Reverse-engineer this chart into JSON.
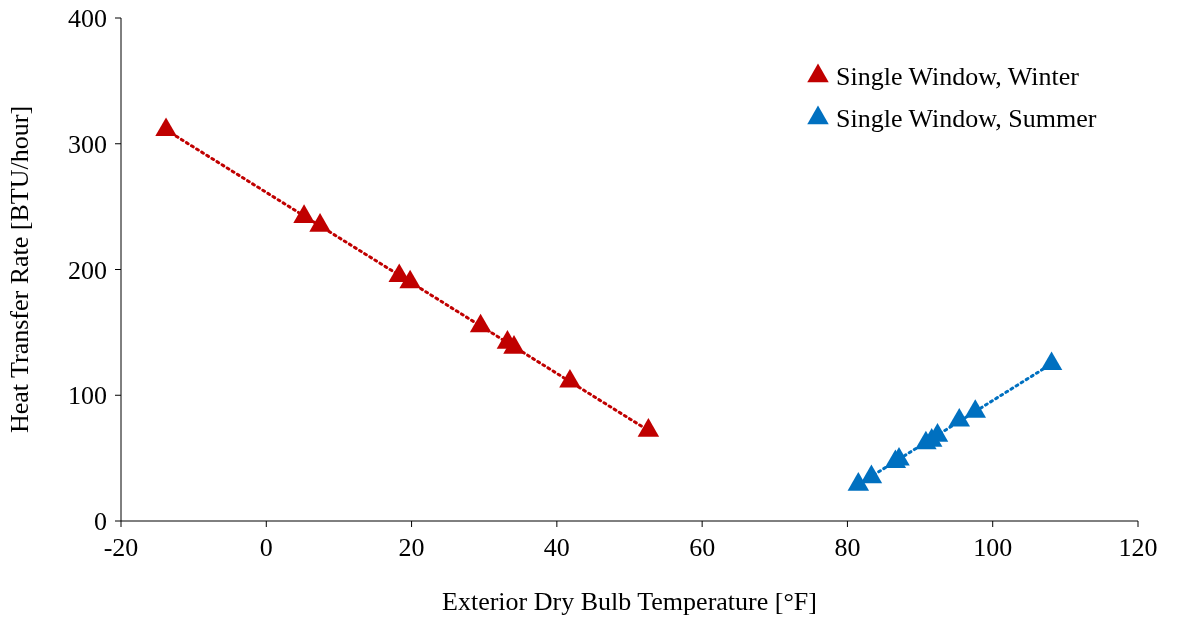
{
  "chart_data": {
    "type": "scatter",
    "xlabel": "Exterior Dry Bulb Temperature [°F]",
    "ylabel": "Heat Transfer Rate [BTU/hour]",
    "xlim": [
      -20,
      120
    ],
    "xticks": [
      -20,
      0,
      20,
      40,
      60,
      80,
      100,
      120
    ],
    "ylim": [
      0,
      400
    ],
    "yticks": [
      0,
      100,
      200,
      300,
      400
    ],
    "grid": false,
    "legend": "top right",
    "marker": "triangle",
    "series": [
      {
        "type": "line",
        "color": "#c00000",
        "line_style": "dotted",
        "marker": "none",
        "x": [
          -13.8,
          52.6
        ],
        "values": [
          311,
          72
        ]
      },
      {
        "type": "line",
        "color": "#0070c0",
        "line_style": "dotted",
        "marker": "none",
        "x": [
          81.5,
          108.1
        ],
        "values": [
          29,
          125
        ]
      },
      {
        "name": "Single Window, Winter",
        "color": "#c00000",
        "x": [
          -13.8,
          5.2,
          7.4,
          18.3,
          19.8,
          29.5,
          33.2,
          34.1,
          41.8,
          52.6
        ],
        "values": [
          311,
          242,
          235,
          195,
          190,
          155,
          142,
          138,
          111,
          72
        ]
      },
      {
        "name": "Single Window, Summer",
        "color": "#0070c0",
        "x": [
          81.5,
          83.3,
          86.6,
          87.1,
          90.8,
          91.6,
          92.4,
          95.4,
          97.6,
          108.1
        ],
        "values": [
          29,
          35,
          47,
          49,
          62,
          64,
          68,
          80,
          87,
          125
        ]
      }
    ]
  }
}
